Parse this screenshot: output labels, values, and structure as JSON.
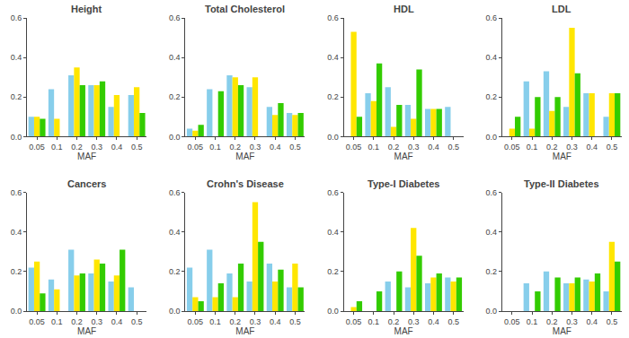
{
  "chart_data": [
    {
      "type": "bar",
      "title": "Height",
      "x_label": "MAF",
      "categories": [
        "0.05",
        "0.1",
        "0.2",
        "0.3",
        "0.4",
        "0.5"
      ],
      "series": [
        {
          "color": "#87CEEB",
          "values": [
            0.1,
            0.24,
            0.31,
            0.26,
            0.15,
            0.21
          ]
        },
        {
          "color": "#FFE600",
          "values": [
            0.1,
            0.09,
            0.35,
            0.26,
            0.21,
            0.25
          ]
        },
        {
          "color": "#33CC00",
          "values": [
            0.09,
            0.0,
            0.26,
            0.28,
            0.0,
            0.12
          ]
        }
      ],
      "ylim": [
        0,
        0.6
      ],
      "yticks": [
        {
          "value": 0,
          "label": "0.0"
        },
        0.2,
        0.4,
        0.6
      ],
      "grid": false
    },
    {
      "type": "bar",
      "title": "Total Cholesterol",
      "x_label": "MAF",
      "categories": [
        "0.05",
        "0.1",
        "0.2",
        "0.3",
        "0.4",
        "0.5"
      ],
      "series": [
        {
          "color": "#87CEEB",
          "values": [
            0.04,
            0.24,
            0.31,
            0.25,
            0.15,
            0.12
          ]
        },
        {
          "color": "#FFE600",
          "values": [
            0.03,
            0.0,
            0.3,
            0.3,
            0.11,
            0.11
          ]
        },
        {
          "color": "#33CC00",
          "values": [
            0.06,
            0.23,
            0.26,
            0.0,
            0.17,
            0.12
          ]
        }
      ],
      "ylim": [
        0,
        0.6
      ],
      "yticks": [
        {
          "value": 0,
          "label": "0.0"
        },
        0.2,
        0.4,
        0.6
      ],
      "grid": false
    },
    {
      "type": "bar",
      "title": "HDL",
      "x_label": "MAF",
      "categories": [
        "0.05",
        "0.1",
        "0.2",
        "0.3",
        "0.4",
        "0.5"
      ],
      "series": [
        {
          "color": "#87CEEB",
          "values": [
            0.0,
            0.22,
            0.25,
            0.16,
            0.14,
            0.15
          ]
        },
        {
          "color": "#FFE600",
          "values": [
            0.53,
            0.18,
            0.05,
            0.09,
            0.14,
            0.0
          ]
        },
        {
          "color": "#33CC00",
          "values": [
            0.1,
            0.37,
            0.16,
            0.34,
            0.14,
            0.0
          ]
        }
      ],
      "ylim": [
        0,
        0.6
      ],
      "yticks": [
        {
          "value": 0,
          "label": "0.0"
        },
        0.2,
        0.4,
        0.6
      ],
      "grid": false
    },
    {
      "type": "bar",
      "title": "LDL",
      "x_label": "MAF",
      "categories": [
        "0.05",
        "0.1",
        "0.2",
        "0.3",
        "0.4",
        "0.5"
      ],
      "series": [
        {
          "color": "#87CEEB",
          "values": [
            0.0,
            0.28,
            0.33,
            0.15,
            0.22,
            0.1
          ]
        },
        {
          "color": "#FFE600",
          "values": [
            0.04,
            0.04,
            0.13,
            0.55,
            0.22,
            0.22
          ]
        },
        {
          "color": "#33CC00",
          "values": [
            0.1,
            0.2,
            0.2,
            0.32,
            0.0,
            0.22
          ]
        }
      ],
      "ylim": [
        0,
        0.6
      ],
      "yticks": [
        {
          "value": 0,
          "label": "0.0"
        },
        0.2,
        0.4,
        0.6
      ],
      "grid": false
    },
    {
      "type": "bar",
      "title": "Cancers",
      "x_label": "MAF",
      "categories": [
        "0.05",
        "0.1",
        "0.2",
        "0.3",
        "0.4",
        "0.5"
      ],
      "series": [
        {
          "color": "#87CEEB",
          "values": [
            0.22,
            0.16,
            0.31,
            0.19,
            0.15,
            0.12
          ]
        },
        {
          "color": "#FFE600",
          "values": [
            0.25,
            0.11,
            0.18,
            0.26,
            0.18,
            0.0
          ]
        },
        {
          "color": "#33CC00",
          "values": [
            0.09,
            0.0,
            0.19,
            0.24,
            0.31,
            0.0
          ]
        }
      ],
      "ylim": [
        0,
        0.6
      ],
      "yticks": [
        {
          "value": 0,
          "label": "0.0"
        },
        0.2,
        0.4,
        0.6
      ],
      "grid": false
    },
    {
      "type": "bar",
      "title": "Crohn's Disease",
      "x_label": "MAF",
      "categories": [
        "0.05",
        "0.1",
        "0.2",
        "0.3",
        "0.4",
        "0.5"
      ],
      "series": [
        {
          "color": "#87CEEB",
          "values": [
            0.22,
            0.31,
            0.19,
            0.15,
            0.24,
            0.12
          ]
        },
        {
          "color": "#FFE600",
          "values": [
            0.07,
            0.07,
            0.07,
            0.55,
            0.15,
            0.24
          ]
        },
        {
          "color": "#33CC00",
          "values": [
            0.05,
            0.14,
            0.24,
            0.35,
            0.21,
            0.12
          ]
        }
      ],
      "ylim": [
        0,
        0.6
      ],
      "yticks": [
        {
          "value": 0,
          "label": "0.0"
        },
        0.2,
        0.4,
        0.6
      ],
      "grid": false
    },
    {
      "type": "bar",
      "title": "Type-I Diabetes",
      "x_label": "MAF",
      "categories": [
        "0.05",
        "0.1",
        "0.2",
        "0.3",
        "0.4",
        "0.5"
      ],
      "series": [
        {
          "color": "#87CEEB",
          "values": [
            0.0,
            0.0,
            0.15,
            0.12,
            0.14,
            0.17
          ]
        },
        {
          "color": "#FFE600",
          "values": [
            0.02,
            0.0,
            0.0,
            0.42,
            0.17,
            0.15
          ]
        },
        {
          "color": "#33CC00",
          "values": [
            0.05,
            0.1,
            0.2,
            0.28,
            0.19,
            0.17
          ]
        }
      ],
      "ylim": [
        0,
        0.6
      ],
      "yticks": [
        {
          "value": 0,
          "label": "0.0"
        },
        0.2,
        0.4,
        0.6
      ],
      "grid": false
    },
    {
      "type": "bar",
      "title": "Type-II Diabetes",
      "x_label": "MAF",
      "categories": [
        "0.05",
        "0.1",
        "0.2",
        "0.3",
        "0.4",
        "0.5"
      ],
      "series": [
        {
          "color": "#87CEEB",
          "values": [
            0.0,
            0.14,
            0.2,
            0.14,
            0.16,
            0.1
          ]
        },
        {
          "color": "#FFE600",
          "values": [
            0.0,
            0.0,
            0.0,
            0.14,
            0.15,
            0.35
          ]
        },
        {
          "color": "#33CC00",
          "values": [
            0.0,
            0.1,
            0.17,
            0.17,
            0.19,
            0.25
          ]
        }
      ],
      "ylim": [
        0,
        0.6
      ],
      "yticks": [
        {
          "value": 0,
          "label": "0.0"
        },
        0.2,
        0.4,
        0.6
      ],
      "grid": false
    }
  ]
}
